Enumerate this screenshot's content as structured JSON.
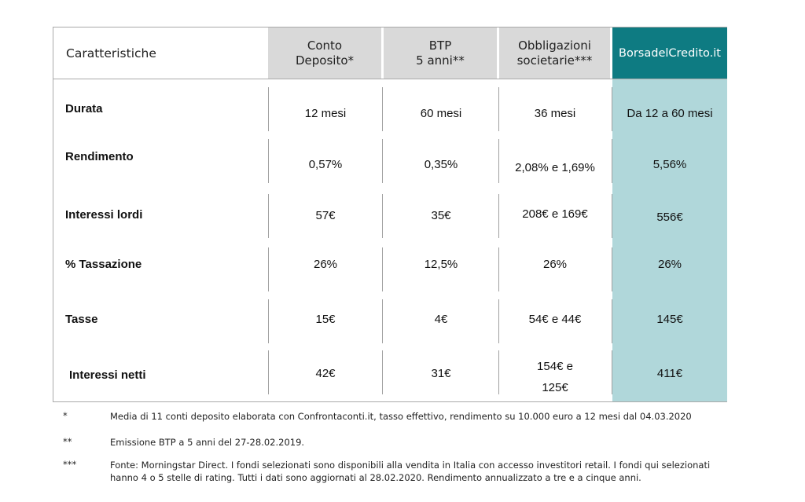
{
  "header": {
    "label": "Caratteristiche",
    "columns": [
      {
        "lines": [
          "Conto",
          "Deposito*"
        ]
      },
      {
        "lines": [
          "BTP",
          "5 anni**"
        ]
      },
      {
        "lines": [
          "Obbligazioni",
          "societarie***"
        ]
      }
    ],
    "brand": "BorsadelCredito.it"
  },
  "rows": [
    {
      "label": "Durata",
      "values": [
        "12 mesi",
        "60 mesi",
        "36 mesi",
        "Da 12 a 60 mesi"
      ]
    },
    {
      "label": "Rendimento",
      "values": [
        "0,57%",
        "0,35%",
        "2,08% e 1,69%",
        "5,56%"
      ]
    },
    {
      "label": "Interessi lordi",
      "values": [
        "57€",
        "35€",
        "208€ e 169€",
        "556€"
      ]
    },
    {
      "label": "% Tassazione",
      "values": [
        "26%",
        "12,5%",
        "26%",
        "26%"
      ]
    },
    {
      "label": "Tasse",
      "values": [
        "15€",
        "4€",
        "54€ e 44€",
        "145€"
      ]
    },
    {
      "label": "Interessi netti",
      "values": [
        "42€",
        "31€",
        "154€ e",
        "411€"
      ],
      "extra": "125€"
    }
  ],
  "notes": [
    {
      "mark": "*",
      "text": "Media di 11 conti deposito elaborata con Confrontaconti.it, tasso effettivo, rendimento su 10.000 euro a 12 mesi dal 04.03.2020"
    },
    {
      "mark": "**",
      "text": "Emissione BTP a 5 anni del 27-28.02.2019."
    },
    {
      "mark": "***",
      "text": "Fonte: Morningstar Direct. I fondi selezionati sono disponibili alla vendita in Italia con accesso investitori retail. I fondi qui selezionati hanno 4 o 5 stelle di rating. Tutti i dati sono aggiornati al 28.02.2020. Rendimento annualizzato a tre e a cinque anni."
    }
  ],
  "colors": {
    "brand": "#0e7b82",
    "brand_light": "#b0d7da",
    "header_gray": "#d9d9d9"
  }
}
